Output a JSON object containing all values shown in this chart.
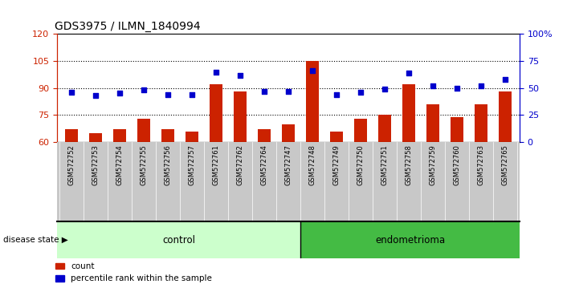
{
  "title": "GDS3975 / ILMN_1840994",
  "samples": [
    "GSM572752",
    "GSM572753",
    "GSM572754",
    "GSM572755",
    "GSM572756",
    "GSM572757",
    "GSM572761",
    "GSM572762",
    "GSM572764",
    "GSM572747",
    "GSM572748",
    "GSM572749",
    "GSM572750",
    "GSM572751",
    "GSM572758",
    "GSM572759",
    "GSM572760",
    "GSM572763",
    "GSM572765"
  ],
  "bar_values": [
    67,
    65,
    67,
    73,
    67,
    66,
    92,
    88,
    67,
    70,
    105,
    66,
    73,
    75,
    92,
    81,
    74,
    81,
    88
  ],
  "dot_values_pct": [
    46,
    43,
    45,
    48,
    44,
    44,
    65,
    62,
    47,
    47,
    66,
    44,
    46,
    49,
    64,
    52,
    50,
    52,
    58
  ],
  "control_count": 10,
  "endometrioma_count": 9,
  "ylim_left": [
    60,
    120
  ],
  "ylim_right": [
    0,
    100
  ],
  "yticks_left": [
    60,
    75,
    90,
    105,
    120
  ],
  "yticks_right": [
    0,
    25,
    50,
    75,
    100
  ],
  "ytick_right_labels": [
    "0",
    "25",
    "50",
    "75",
    "100%"
  ],
  "bar_color": "#cc2200",
  "dot_color": "#0000cc",
  "xlabels_bg": "#c8c8c8",
  "control_bg": "#ccffcc",
  "endometrioma_bg": "#44bb44",
  "legend_count_label": "count",
  "legend_pct_label": "percentile rank within the sample",
  "disease_state_label": "disease state",
  "control_label": "control",
  "endometrioma_label": "endometrioma"
}
